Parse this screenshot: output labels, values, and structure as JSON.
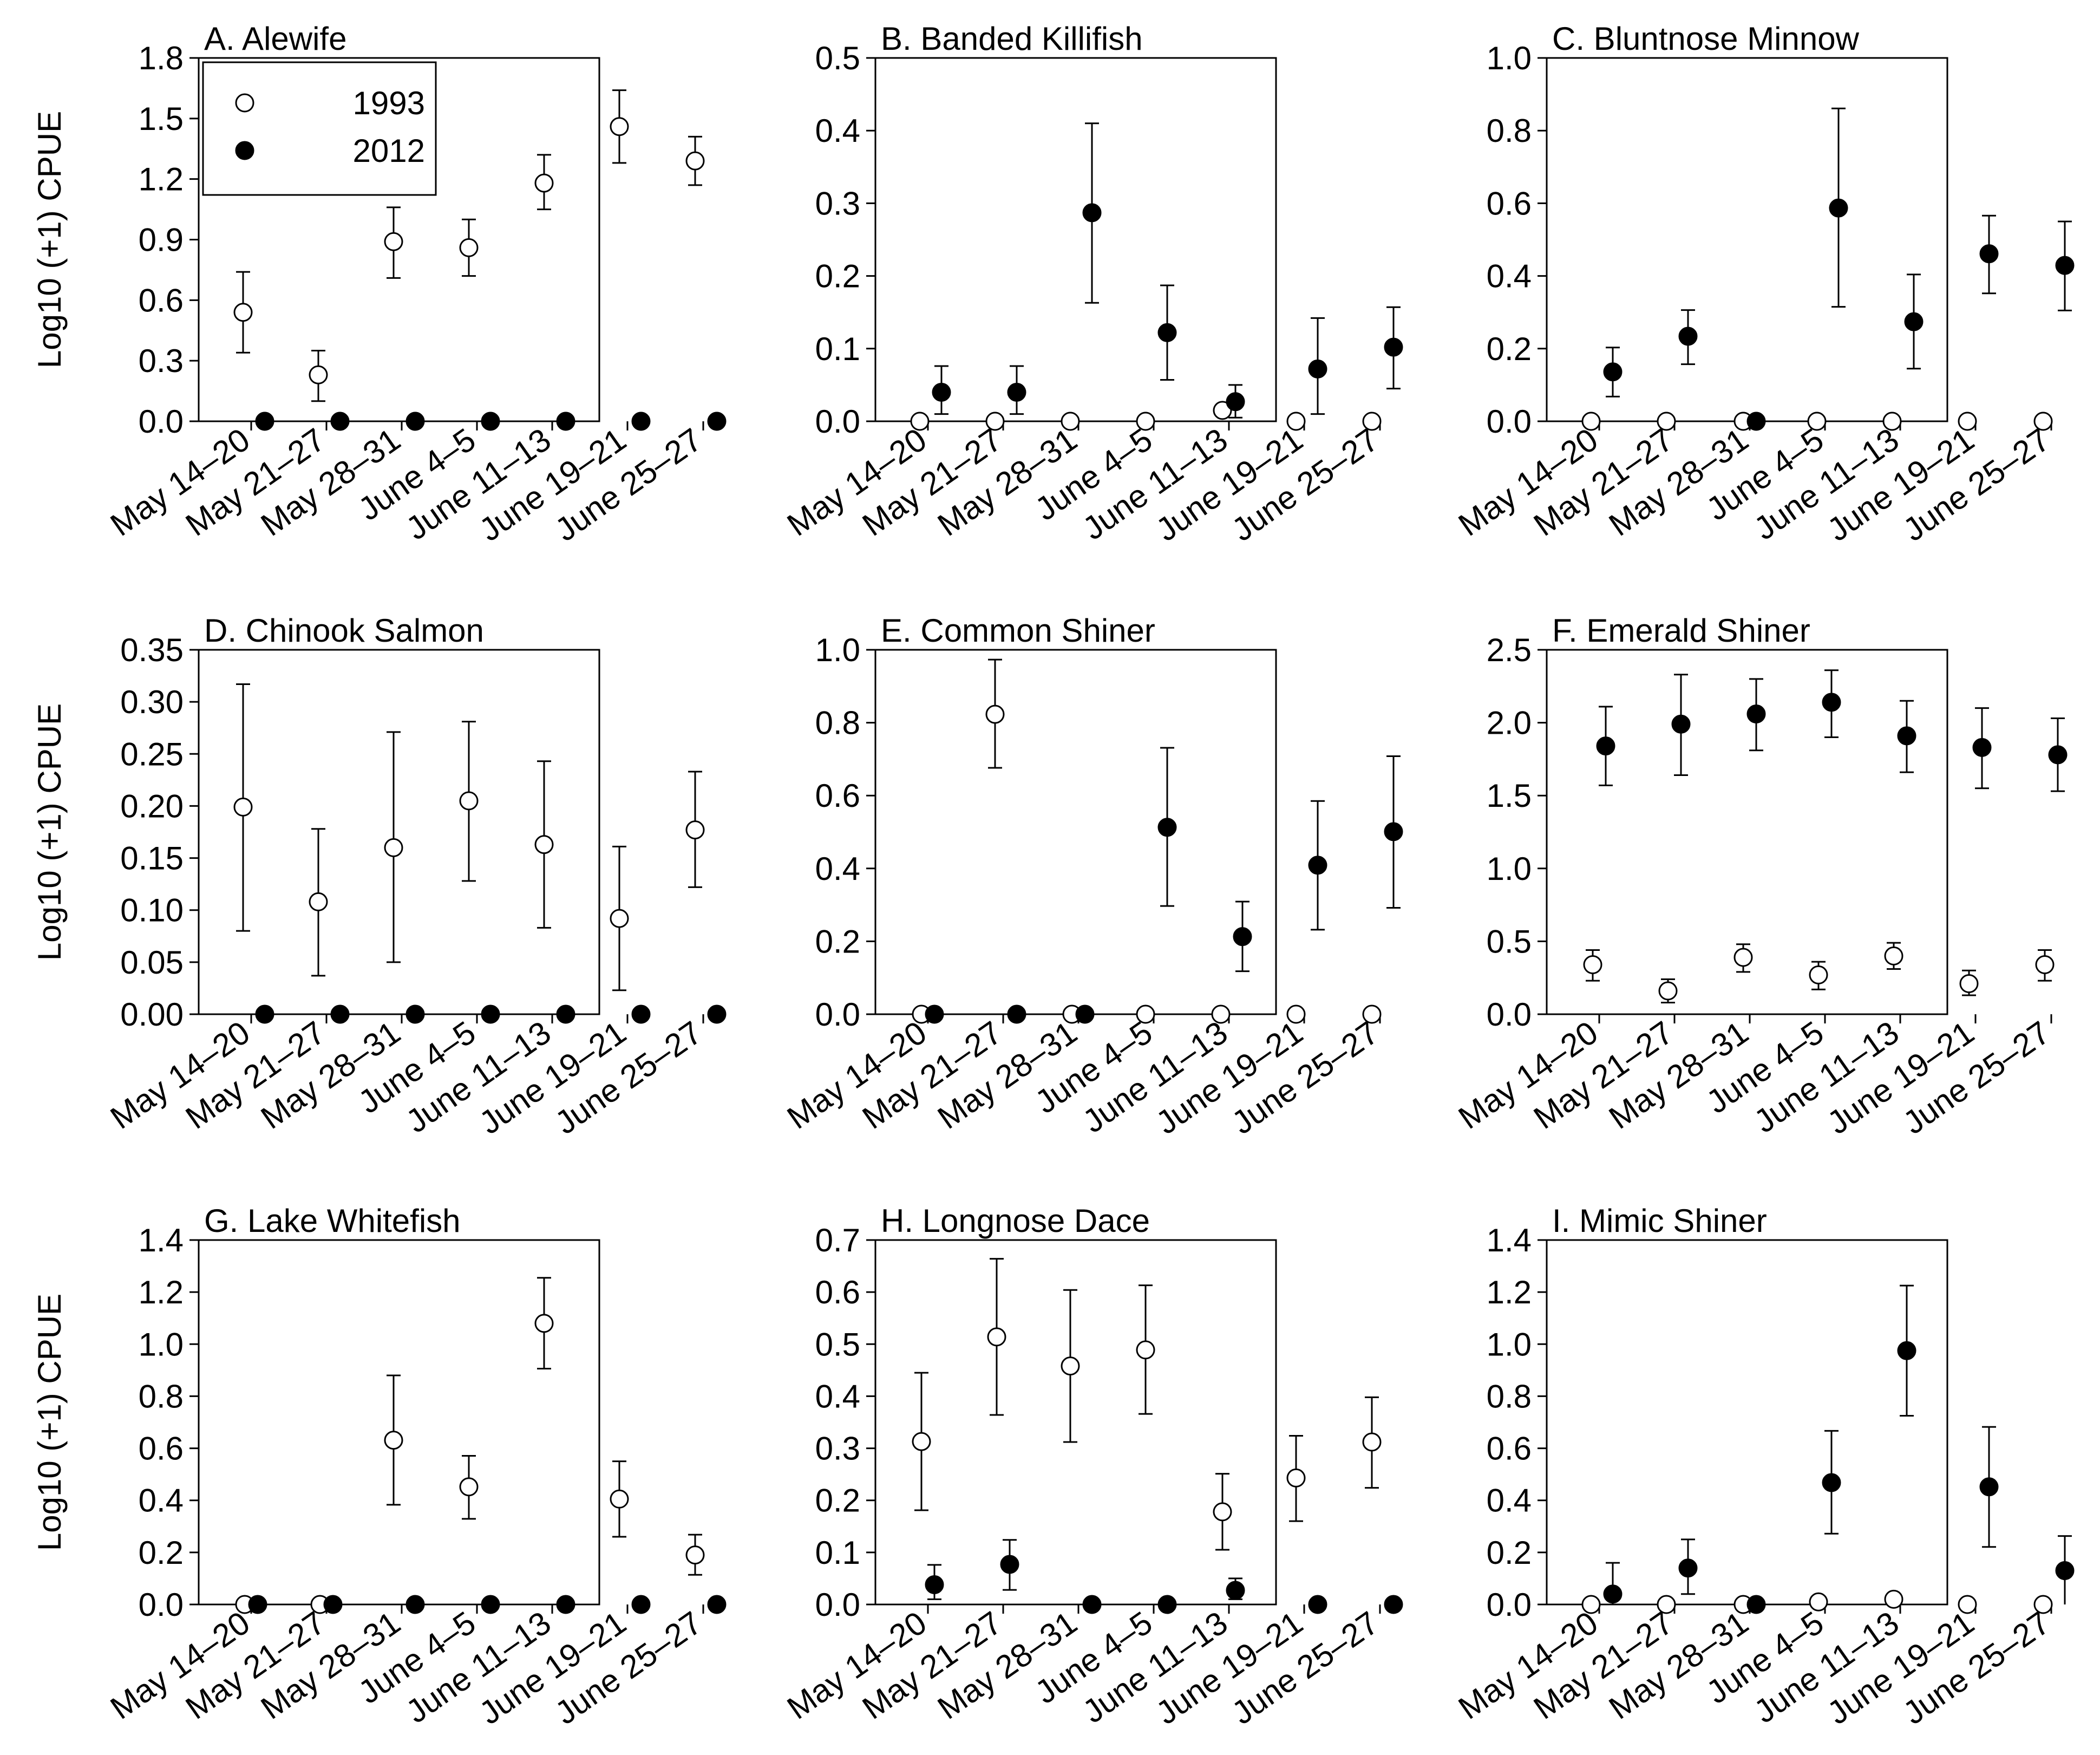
{
  "figure": {
    "categories": [
      "May 14–20",
      "May 21–27",
      "May 28–31",
      "June 4–5",
      "June 11–13",
      "June 19–21",
      "June 25–27"
    ],
    "y_axis_label": "Log10 (+1) CPUE",
    "legend": {
      "series_1993": "1993",
      "series_2012": "2012"
    }
  },
  "chart_data": [
    {
      "type": "scatter",
      "title": "A. Alewife",
      "ylabel": "Log10 (+1) CPUE",
      "ylim": [
        0,
        1.8
      ],
      "yticks": [
        "0.0",
        "0.3",
        "0.6",
        "0.9",
        "1.2",
        "1.5",
        "1.8"
      ],
      "series": [
        {
          "name": "1993",
          "values": [
            0.54,
            0.23,
            0.89,
            0.86,
            1.18,
            1.46,
            1.29
          ],
          "err_low": [
            0.34,
            0.1,
            0.71,
            0.72,
            1.05,
            1.28,
            1.17
          ],
          "err_high": [
            0.74,
            0.35,
            1.06,
            1.0,
            1.32,
            1.64,
            1.41
          ]
        },
        {
          "name": "2012",
          "values": [
            0,
            0,
            0,
            0,
            0,
            0,
            0
          ]
        }
      ]
    },
    {
      "type": "scatter",
      "title": "B. Banded Killifish",
      "ylim": [
        0,
        0.5
      ],
      "yticks": [
        "0.0",
        "0.1",
        "0.2",
        "0.3",
        "0.4",
        "0.5"
      ],
      "series": [
        {
          "name": "1993",
          "values": [
            0,
            0,
            0,
            0,
            0.015,
            0,
            0
          ]
        },
        {
          "name": "2012",
          "values": [
            0.04,
            0.04,
            0.287,
            0.122,
            0.027,
            0.072,
            0.102
          ],
          "err_low": [
            0.01,
            0.01,
            0.163,
            0.057,
            0.005,
            0.01,
            0.045
          ],
          "err_high": [
            0.076,
            0.076,
            0.41,
            0.187,
            0.05,
            0.142,
            0.157
          ]
        }
      ]
    },
    {
      "type": "scatter",
      "title": "C. Bluntnose Minnow",
      "ylim": [
        0,
        1.0
      ],
      "yticks": [
        "0.0",
        "0.2",
        "0.4",
        "0.6",
        "0.8",
        "1.0"
      ],
      "series": [
        {
          "name": "1993",
          "values": [
            0,
            0,
            0,
            0,
            0,
            0,
            0
          ]
        },
        {
          "name": "2012",
          "values": [
            0.136,
            0.234,
            0,
            0.587,
            0.274,
            0.461,
            0.429
          ],
          "err_low": [
            0.068,
            0.157,
            0,
            0.315,
            0.145,
            0.352,
            0.305
          ],
          "err_high": [
            0.203,
            0.306,
            0,
            0.861,
            0.404,
            0.566,
            0.55
          ]
        }
      ]
    },
    {
      "type": "scatter",
      "title": "D. Chinook Salmon",
      "ylim": [
        0,
        0.35
      ],
      "yticks": [
        "0.00",
        "0.05",
        "0.10",
        "0.15",
        "0.20",
        "0.25",
        "0.30",
        "0.35"
      ],
      "series": [
        {
          "name": "1993",
          "values": [
            0.199,
            0.108,
            0.16,
            0.205,
            0.163,
            0.092,
            0.177
          ],
          "err_low": [
            0.08,
            0.037,
            0.05,
            0.128,
            0.083,
            0.023,
            0.122
          ],
          "err_high": [
            0.317,
            0.178,
            0.271,
            0.281,
            0.243,
            0.161,
            0.233
          ]
        },
        {
          "name": "2012",
          "values": [
            0,
            0,
            0,
            0,
            0,
            0,
            0
          ]
        }
      ]
    },
    {
      "type": "scatter",
      "title": "E. Common Shiner",
      "ylim": [
        0,
        1.0
      ],
      "yticks": [
        "0.0",
        "0.2",
        "0.4",
        "0.6",
        "0.8",
        "1.0"
      ],
      "series": [
        {
          "name": "1993",
          "values": [
            0,
            0.823,
            0,
            0,
            0,
            0,
            0
          ],
          "err_low": [
            0,
            0.676,
            0,
            0,
            0,
            0,
            0
          ],
          "err_high": [
            0,
            0.973,
            0,
            0,
            0,
            0,
            0
          ]
        },
        {
          "name": "2012",
          "values": [
            0,
            0,
            0,
            0.513,
            0.213,
            0.409,
            0.501
          ],
          "err_low": [
            0,
            0,
            0,
            0.297,
            0.118,
            0.232,
            0.292
          ],
          "err_high": [
            0,
            0,
            0,
            0.731,
            0.309,
            0.585,
            0.708
          ]
        }
      ]
    },
    {
      "type": "scatter",
      "title": "F. Emerald Shiner",
      "ylim": [
        0,
        2.5
      ],
      "yticks": [
        "0.0",
        "0.5",
        "1.0",
        "1.5",
        "2.0",
        "2.5"
      ],
      "series": [
        {
          "name": "1993",
          "values": [
            0.34,
            0.16,
            0.39,
            0.27,
            0.4,
            0.21,
            0.34
          ],
          "err_low": [
            0.23,
            0.08,
            0.29,
            0.17,
            0.31,
            0.13,
            0.23
          ],
          "err_high": [
            0.44,
            0.24,
            0.48,
            0.36,
            0.49,
            0.3,
            0.44
          ]
        },
        {
          "name": "2012",
          "values": [
            1.84,
            1.99,
            2.06,
            2.14,
            1.91,
            1.83,
            1.78
          ],
          "err_low": [
            1.57,
            1.64,
            1.81,
            1.9,
            1.66,
            1.55,
            1.53
          ],
          "err_high": [
            2.11,
            2.33,
            2.3,
            2.36,
            2.15,
            2.1,
            2.03
          ]
        }
      ]
    },
    {
      "type": "scatter",
      "title": "G. Lake Whitefish",
      "ylabel": "Log10 (+1) CPUE",
      "ylim": [
        0,
        1.4
      ],
      "yticks": [
        "0.0",
        "0.2",
        "0.4",
        "0.6",
        "0.8",
        "1.0",
        "1.2",
        "1.4"
      ],
      "series": [
        {
          "name": "1993",
          "values": [
            0,
            0,
            0.631,
            0.452,
            1.08,
            0.405,
            0.19
          ],
          "err_low": [
            0,
            0,
            0.383,
            0.329,
            0.906,
            0.26,
            0.114
          ],
          "err_high": [
            0,
            0,
            0.88,
            0.571,
            1.255,
            0.55,
            0.268
          ]
        },
        {
          "name": "2012",
          "values": [
            0,
            0,
            0,
            0,
            0,
            0,
            0
          ]
        }
      ]
    },
    {
      "type": "scatter",
      "title": "H. Longnose Dace",
      "ylim": [
        0,
        0.7
      ],
      "yticks": [
        "0.0",
        "0.1",
        "0.2",
        "0.3",
        "0.4",
        "0.5",
        "0.6",
        "0.7"
      ],
      "series": [
        {
          "name": "1993",
          "values": [
            0.313,
            0.514,
            0.458,
            0.489,
            0.178,
            0.243,
            0.312
          ],
          "err_low": [
            0.181,
            0.364,
            0.312,
            0.366,
            0.105,
            0.16,
            0.224
          ],
          "err_high": [
            0.445,
            0.664,
            0.604,
            0.613,
            0.251,
            0.324,
            0.398
          ]
        },
        {
          "name": "2012",
          "values": [
            0.038,
            0.077,
            0,
            0,
            0.027,
            0,
            0
          ],
          "err_low": [
            0.01,
            0.028,
            0,
            0,
            0.01,
            0,
            0
          ],
          "err_high": [
            0.076,
            0.124,
            0,
            0,
            0.05,
            0,
            0
          ]
        }
      ]
    },
    {
      "type": "scatter",
      "title": "I. Mimic Shiner",
      "ylim": [
        0,
        1.4
      ],
      "yticks": [
        "0.0",
        "0.2",
        "0.4",
        "0.6",
        "0.8",
        "1.0",
        "1.2",
        "1.4"
      ],
      "series": [
        {
          "name": "1993",
          "values": [
            0,
            0,
            0,
            0.01,
            0.02,
            0,
            0
          ]
        },
        {
          "name": "2012",
          "values": [
            0.04,
            0.14,
            0,
            0.468,
            0.975,
            0.452,
            0.13
          ],
          "err_low": [
            0,
            0.04,
            0,
            0.272,
            0.725,
            0.221,
            0
          ],
          "err_high": [
            0.16,
            0.25,
            0,
            0.667,
            1.225,
            0.682,
            0.263
          ]
        }
      ]
    }
  ]
}
